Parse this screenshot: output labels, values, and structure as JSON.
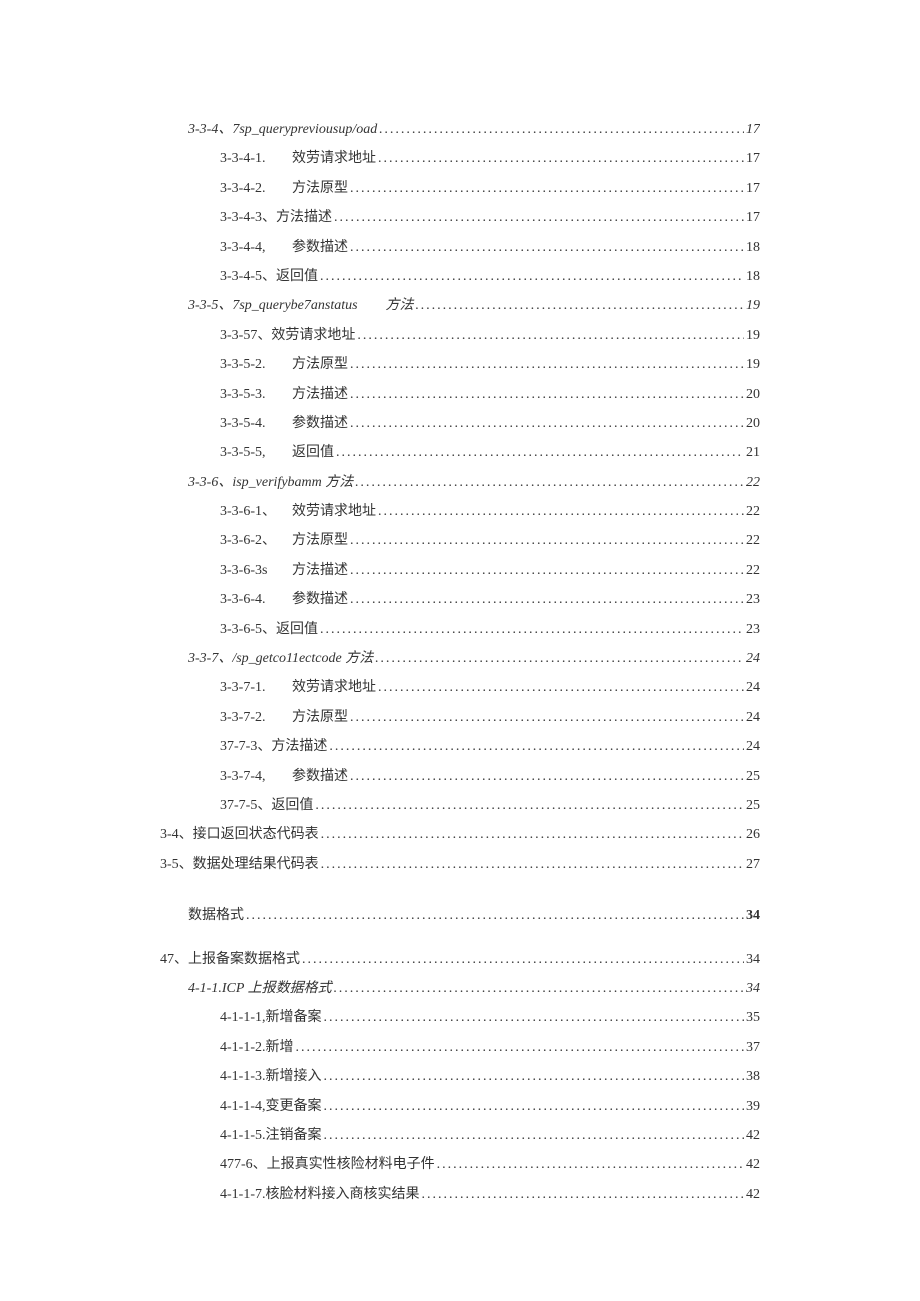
{
  "typography": {
    "font_family": "Times New Roman / SimSun",
    "font_size_pt": 10.5,
    "line_height": 2.1,
    "text_color": "#333333",
    "italic_color": "#333333",
    "background_color": "#ffffff"
  },
  "toc": [
    {
      "level": 2,
      "italic": true,
      "num": "3-3-4、",
      "title": "7sp_querypreviousup/oad",
      "page": "17"
    },
    {
      "level": 3,
      "italic": false,
      "num": "3-3-4-1.",
      "title": "效劳请求地址",
      "page": "17"
    },
    {
      "level": 3,
      "italic": false,
      "num": "3-3-4-2.",
      "title": "方法原型",
      "page": "17"
    },
    {
      "level": 3,
      "italic": false,
      "num": "3-3-4-3、",
      "title": "方法描述",
      "page": "17",
      "nopad": true
    },
    {
      "level": 3,
      "italic": false,
      "num": "3-3-4-4,",
      "title": "参数描述",
      "page": "18"
    },
    {
      "level": 3,
      "italic": false,
      "num": "3-3-4-5、",
      "title": "返回值",
      "page": "18",
      "nopad": true
    },
    {
      "level": 2,
      "italic": true,
      "num": "3-3-5、",
      "title": "7sp_querybe7anstatus　　方法",
      "page": "19"
    },
    {
      "level": 3,
      "italic": false,
      "num": "3-3-57、",
      "title": "效劳请求地址",
      "page": "19",
      "nopad": true
    },
    {
      "level": 3,
      "italic": false,
      "num": "3-3-5-2.",
      "title": "方法原型",
      "page": "19"
    },
    {
      "level": 3,
      "italic": false,
      "num": "3-3-5-3.",
      "title": "方法描述",
      "page": "20"
    },
    {
      "level": 3,
      "italic": false,
      "num": "3-3-5-4.",
      "title": "参数描述",
      "page": "20"
    },
    {
      "level": 3,
      "italic": false,
      "num": "3-3-5-5,",
      "title": "返回值",
      "page": "21"
    },
    {
      "level": 2,
      "italic": true,
      "num": "3-3-6、",
      "title": "isp_verifybamm 方法",
      "page": "22"
    },
    {
      "level": 3,
      "italic": false,
      "num": "3-3-6-1、",
      "title": "效劳请求地址",
      "page": "22"
    },
    {
      "level": 3,
      "italic": false,
      "num": "3-3-6-2、",
      "title": "方法原型",
      "page": "22"
    },
    {
      "level": 3,
      "italic": false,
      "num": "3-3-6-3s",
      "title": "方法描述",
      "page": "22"
    },
    {
      "level": 3,
      "italic": false,
      "num": "3-3-6-4.",
      "title": "参数描述",
      "page": "23"
    },
    {
      "level": 3,
      "italic": false,
      "num": "3-3-6-5、",
      "title": "返回值",
      "page": "23",
      "nopad": true
    },
    {
      "level": 2,
      "italic": true,
      "num": "3-3-7、",
      "title": "/sp_getco11ectcode 方法",
      "page": "24"
    },
    {
      "level": 3,
      "italic": false,
      "num": "3-3-7-1.",
      "title": "效劳请求地址",
      "page": "24"
    },
    {
      "level": 3,
      "italic": false,
      "num": "3-3-7-2.",
      "title": "方法原型",
      "page": "24"
    },
    {
      "level": 3,
      "italic": false,
      "num": "37-7-3、",
      "title": "方法描述",
      "page": "24",
      "nopad": true
    },
    {
      "level": 3,
      "italic": false,
      "num": "3-3-7-4,",
      "title": "参数描述",
      "page": "25"
    },
    {
      "level": 3,
      "italic": false,
      "num": "37-7-5、",
      "title": "返回值",
      "page": "25",
      "nopad": true
    },
    {
      "level": 1,
      "italic": false,
      "num": "3-4、",
      "title": "接口返回状态代码表",
      "page": "26"
    },
    {
      "level": 1,
      "italic": false,
      "num": "3-5、",
      "title": "数据处理结果代码表",
      "page": "27"
    },
    {
      "level": 1,
      "italic": false,
      "num": "",
      "title": "数据格式",
      "page": "34",
      "bold_page": true,
      "gap": "top",
      "indent_override": "indent-1"
    },
    {
      "level": 1,
      "italic": false,
      "num": "47、",
      "title": "上报备案数据格式",
      "page": "34",
      "gap": "topsm"
    },
    {
      "level": 2,
      "italic": true,
      "num": "4-1-1.",
      "title": "ICP 上报数据格式",
      "page": "34"
    },
    {
      "level": 3,
      "italic": false,
      "num": "4-1-1-1,",
      "title": "新增备案",
      "page": "35",
      "nopad": true
    },
    {
      "level": 3,
      "italic": false,
      "num": "4-1-1-2.",
      "title": "新增",
      "page": "37",
      "nopad": true
    },
    {
      "level": 3,
      "italic": false,
      "num": "4-1-1-3.",
      "title": "新增接入",
      "page": "38",
      "nopad": true
    },
    {
      "level": 3,
      "italic": false,
      "num": "4-1-1-4,",
      "title": "变更备案",
      "page": "39",
      "nopad": true
    },
    {
      "level": 3,
      "italic": false,
      "num": "4-1-1-5.",
      "title": "注销备案",
      "page": "42",
      "nopad": true
    },
    {
      "level": 3,
      "italic": false,
      "num": "477-6、",
      "title": "上报真实性核险材料电子件",
      "page": "42",
      "nopad": true
    },
    {
      "level": 3,
      "italic": false,
      "num": "4-1-1-7.",
      "title": "核脸材料接入商核实结果",
      "page": "42",
      "nopad": true
    }
  ]
}
